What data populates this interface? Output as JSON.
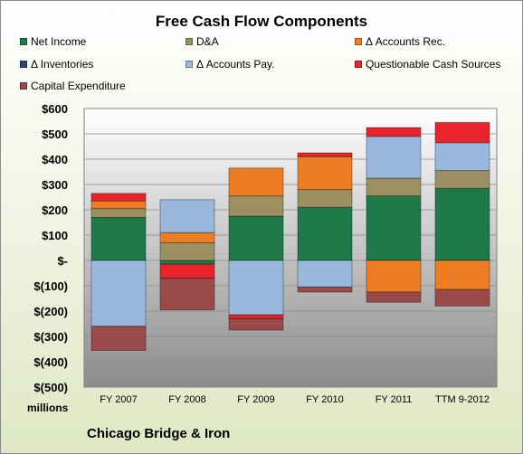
{
  "chart_data": {
    "type": "bar",
    "stacked": true,
    "title": "Free Cash Flow Components",
    "unit_label": "millions",
    "company": "Chicago Bridge & Iron",
    "categories": [
      "FY 2007",
      "FY 2008",
      "FY 2009",
      "FY 2010",
      "FY 2011",
      "TTM 9-2012"
    ],
    "ylim": [
      -500,
      600
    ],
    "yticks": [
      600,
      500,
      400,
      300,
      200,
      100,
      0,
      -100,
      -200,
      -300,
      -400,
      -500
    ],
    "ytick_labels": [
      "$600",
      "$500",
      "$400",
      "$300",
      "$200",
      "$100",
      "$-",
      "$(100)",
      "$(200)",
      "$(300)",
      "$(400)",
      "$(500)"
    ],
    "legend_placement": "top",
    "series": [
      {
        "name": "Net Income",
        "color": "#1e7a46",
        "values": [
          170,
          -15,
          175,
          210,
          255,
          285
        ]
      },
      {
        "name": "D&A",
        "color": "#9c9063",
        "values": [
          35,
          70,
          80,
          70,
          70,
          70
        ]
      },
      {
        "name": "Δ Accounts Rec.",
        "color": "#ed7d22",
        "values": [
          30,
          40,
          110,
          130,
          -125,
          -115
        ]
      },
      {
        "name": "Δ Inventories",
        "color": "#2c4a68",
        "values": [
          0,
          0,
          0,
          0,
          0,
          0
        ]
      },
      {
        "name": "Δ Accounts Pay.",
        "color": "#9ab8dd",
        "values": [
          -260,
          130,
          -215,
          -105,
          165,
          110
        ]
      },
      {
        "name": "Questionable Cash Sources",
        "color": "#e8232a",
        "values": [
          30,
          -55,
          -15,
          15,
          35,
          80
        ]
      },
      {
        "name": "Capital Expenditure",
        "color": "#9b4a4a",
        "values": [
          -95,
          -125,
          -45,
          -20,
          -40,
          -65
        ]
      }
    ]
  }
}
